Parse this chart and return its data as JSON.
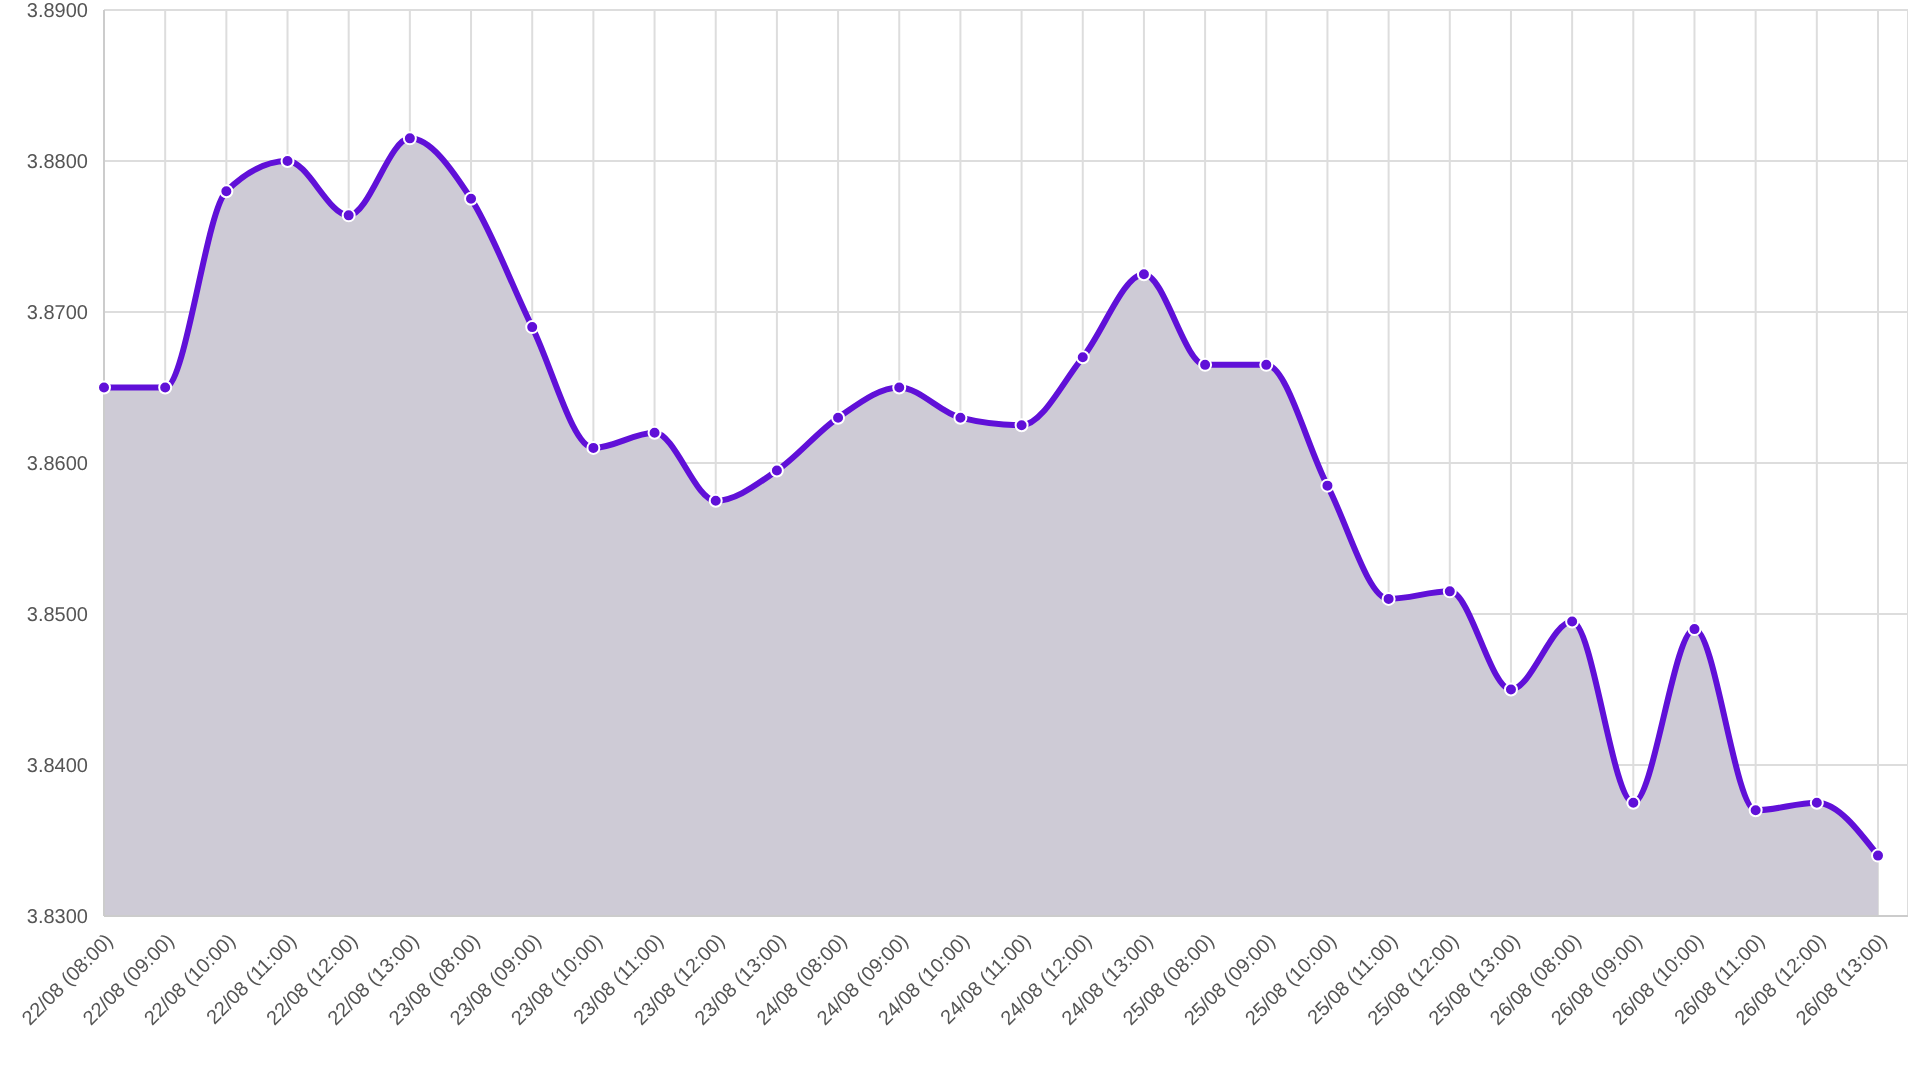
{
  "chart_data": {
    "type": "area",
    "categories": [
      "22/08 (08:00)",
      "22/08 (09:00)",
      "22/08 (10:00)",
      "22/08 (11:00)",
      "22/08 (12:00)",
      "22/08 (13:00)",
      "23/08 (08:00)",
      "23/08 (09:00)",
      "23/08 (10:00)",
      "23/08 (11:00)",
      "23/08 (12:00)",
      "23/08 (13:00)",
      "24/08 (08:00)",
      "24/08 (09:00)",
      "24/08 (10:00)",
      "24/08 (11:00)",
      "24/08 (12:00)",
      "24/08 (13:00)",
      "25/08 (08:00)",
      "25/08 (09:00)",
      "25/08 (10:00)",
      "25/08 (11:00)",
      "25/08 (12:00)",
      "25/08 (13:00)",
      "26/08 (08:00)",
      "26/08 (09:00)",
      "26/08 (10:00)",
      "26/08 (11:00)",
      "26/08 (12:00)",
      "26/08 (13:00)"
    ],
    "series": [
      {
        "color": "#6010d8",
        "values": [
          3.865,
          3.865,
          3.878,
          3.88,
          3.8764,
          3.8815,
          3.8775,
          3.869,
          3.861,
          3.862,
          3.8575,
          3.8595,
          3.863,
          3.865,
          3.863,
          3.8625,
          3.867,
          3.8725,
          3.8665,
          3.8665,
          3.8585,
          3.851,
          3.8515,
          3.845,
          3.8495,
          3.8375,
          3.849,
          3.837,
          3.8375,
          3.834
        ]
      }
    ],
    "ylim": [
      3.83,
      3.89
    ],
    "yticks": [
      {
        "value": 3.83,
        "label": "3.8300"
      },
      {
        "value": 3.84,
        "label": "3.8400"
      },
      {
        "value": 3.85,
        "label": "3.8500"
      },
      {
        "value": 3.86,
        "label": "3.8600"
      },
      {
        "value": 3.87,
        "label": "3.8700"
      },
      {
        "value": 3.88,
        "label": "3.8800"
      },
      {
        "value": 3.89,
        "label": "3.8900"
      }
    ],
    "grid": true,
    "marker": "circle",
    "line_style": "solid"
  }
}
